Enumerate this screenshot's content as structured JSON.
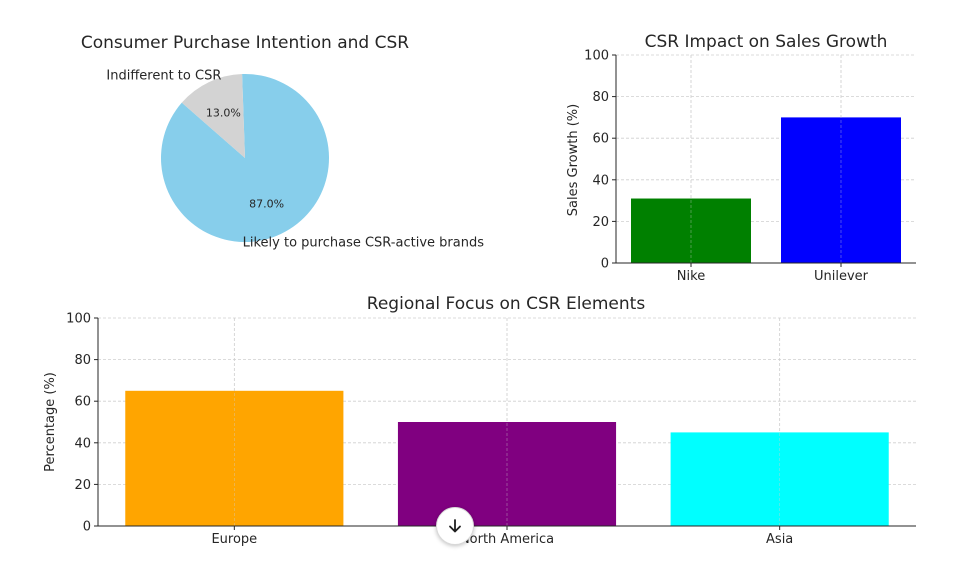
{
  "chart_data": [
    {
      "type": "pie",
      "title": "Consumer Purchase Intention and CSR",
      "labels": [
        "Likely to purchase CSR-active brands",
        "Indifferent to CSR"
      ],
      "values": [
        87.0,
        13.0
      ],
      "pct_labels": [
        "87.0%",
        "13.0%"
      ],
      "colors": [
        "#87ceeb",
        "#d3d3d3"
      ]
    },
    {
      "type": "bar",
      "title": "CSR Impact on Sales Growth",
      "categories": [
        "Nike",
        "Unilever"
      ],
      "values": [
        31,
        70
      ],
      "colors": [
        "#008000",
        "#0000ff"
      ],
      "xlabel": "",
      "ylabel": "Sales Growth (%)",
      "ylim": [
        0,
        100
      ],
      "yticks": [
        0,
        20,
        40,
        60,
        80,
        100
      ],
      "grid": true
    },
    {
      "type": "bar",
      "title": "Regional Focus on CSR Elements",
      "categories": [
        "Europe",
        "North America",
        "Asia"
      ],
      "values": [
        65,
        50,
        45
      ],
      "colors": [
        "#ffa500",
        "#800080",
        "#00ffff"
      ],
      "xlabel": "",
      "ylabel": "Percentage (%)",
      "ylim": [
        0,
        100
      ],
      "yticks": [
        0,
        20,
        40,
        60,
        80,
        100
      ],
      "grid": true
    }
  ],
  "scroll_button": {
    "icon": "arrow-down-icon"
  }
}
